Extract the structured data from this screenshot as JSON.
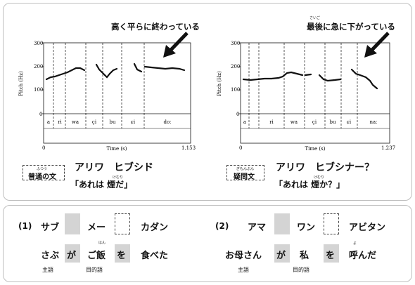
{
  "charts": [
    {
      "annotation": "高く平らに終わっている",
      "annotation_ruby": "",
      "ylabel": "Pitch (Hz)",
      "xlabel": "Time (s)",
      "y_ticks": [
        "300",
        "200",
        "100",
        "0"
      ],
      "x_start": "0",
      "x_end": "1.153",
      "segments": [
        "a",
        "ri",
        "wa",
        "çi",
        "bu",
        "ɕi",
        "doː"
      ],
      "sentence_tag": "普通の文",
      "sentence_tag_ruby": "ふつう",
      "katakana": "アリワ　ヒブシド",
      "japanese": "「あれは 煙だ」",
      "japanese_ruby": "けむり"
    },
    {
      "annotation": "最後に急に下がっている",
      "annotation_ruby": "さいご",
      "ylabel": "Pitch (Hz)",
      "xlabel": "Time (s)",
      "y_ticks": [
        "300",
        "200",
        "100",
        "0"
      ],
      "x_start": "0",
      "x_end": "1.237",
      "segments": [
        "a",
        "ri",
        "wa",
        "çi",
        "bu",
        "ɕi",
        "naː"
      ],
      "sentence_tag": "疑問文",
      "sentence_tag_ruby": "ぎもんぶん",
      "katakana": "アリワ　ヒブシナー？",
      "japanese": "「あれは 煙か？」",
      "japanese_ruby": "けむり"
    }
  ],
  "exercise": {
    "item1": {
      "number": "(1)",
      "row1": [
        "サブ",
        "メー",
        "カダン"
      ],
      "row2_words": [
        "さぶ",
        "が",
        "ご飯",
        "を",
        "食べた"
      ],
      "row2_ruby": "はん",
      "labels": [
        "主語",
        "目的語"
      ]
    },
    "item2": {
      "number": "(2)",
      "row1": [
        "アマ",
        "ワン",
        "アビタン"
      ],
      "row2_words": [
        "お母さん",
        "が",
        "私",
        "を",
        "呼んだ"
      ],
      "row2_ruby": "よ",
      "labels": [
        "主語",
        "目的語"
      ]
    }
  }
}
